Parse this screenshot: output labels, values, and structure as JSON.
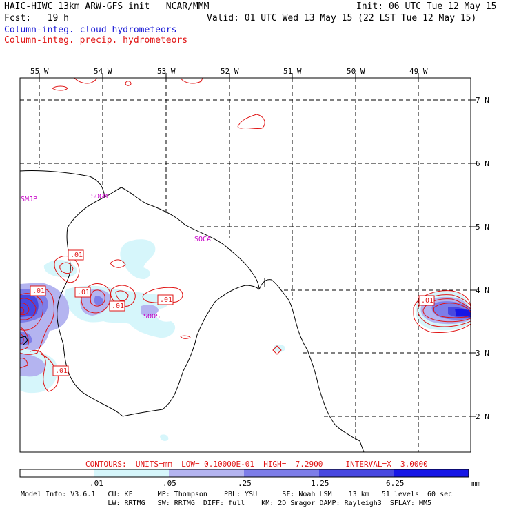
{
  "header": {
    "title_left": "HAIC-HIWC 13km ARW-GFS init   NCAR/MMM",
    "init": "Init: 06 UTC Tue 12 May 15",
    "fcst": "Fcst:   19 h",
    "valid": "Valid: 01 UTC Wed 13 May 15 (22 LST Tue 12 May 15)",
    "field_cloud": "Column-integ. cloud hydrometeors",
    "field_precip": "Column-integ. precip. hydrometeors"
  },
  "map": {
    "lon_labels": [
      "55 W",
      "54 W",
      "53 W",
      "52 W",
      "51 W",
      "50 W",
      "49 W"
    ],
    "lat_labels": [
      "7 N",
      "6 N",
      "5 N",
      "4 N",
      "3 N",
      "2 N"
    ],
    "stations": [
      "SMJP",
      "SOGM",
      "SOCA",
      "SOOS"
    ],
    "contour_labels": [
      ".01",
      ".01",
      ".01",
      ".01",
      ".01",
      ".01",
      ".01"
    ]
  },
  "contour_info": {
    "text": "CONTOURS:  UNITS=mm  LOW= 0.10000E-01  HIGH=  7.2900     INTERVAL=X  3.0000"
  },
  "colorbar": {
    "ticks": [
      ".01",
      ".05",
      ".25",
      "1.25",
      "6.25"
    ],
    "unit": "mm",
    "colors": [
      "#ffffff",
      "#d6f6fb",
      "#b4b4f0",
      "#7d7de8",
      "#4848e0",
      "#1616e6"
    ]
  },
  "model_info": {
    "line1": "Model Info: V3.6.1   CU: KF      MP: Thompson    PBL: YSU      SF: Noah LSM    13 km   51 levels  60 sec",
    "line2": "                     LW: RRTMG   SW: RRTMG  DIFF: full    KM: 2D Smagor DAMP: Rayleigh3  SFLAY: MM5"
  }
}
